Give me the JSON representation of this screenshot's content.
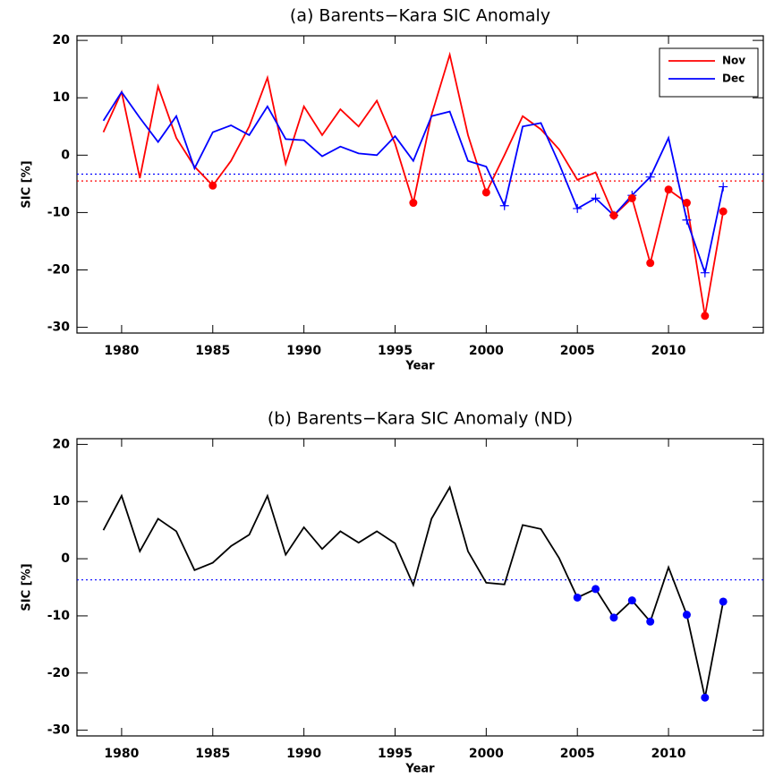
{
  "chart_data": [
    {
      "type": "line",
      "title": "(a) Barents−Kara SIC Anomaly",
      "xlabel": "Year",
      "ylabel": "SIC [%]",
      "xlim": [
        1977.55,
        2015.2
      ],
      "ylim": [
        -31,
        20.8
      ],
      "xticks": [
        1980,
        1985,
        1990,
        1995,
        2000,
        2005,
        2010
      ],
      "yticks": [
        -30,
        -20,
        -10,
        0,
        10,
        20
      ],
      "legend": "upper right",
      "x": [
        1979,
        1980,
        1981,
        1982,
        1983,
        1984,
        1985,
        1986,
        1987,
        1988,
        1989,
        1990,
        1991,
        1992,
        1993,
        1994,
        1995,
        1996,
        1997,
        1998,
        1999,
        2000,
        2001,
        2002,
        2003,
        2004,
        2005,
        2006,
        2007,
        2008,
        2009,
        2010,
        2011,
        2012,
        2013
      ],
      "series": [
        {
          "name": "Nov",
          "color": "#ff0000",
          "values": [
            4,
            11,
            -4,
            12,
            3,
            -2,
            -5.3,
            -1,
            5,
            13.5,
            -1.5,
            8.5,
            3.5,
            8,
            5,
            9.5,
            2,
            -8.3,
            7,
            17.5,
            3.5,
            -6.5,
            0,
            6.8,
            4.5,
            1,
            -4.3,
            -3,
            -10.5,
            -7.5,
            -18.8,
            -6,
            -8.3,
            -28,
            -9.8
          ]
        },
        {
          "name": "Dec",
          "color": "#0000ff",
          "values": [
            6,
            11,
            6.5,
            2.3,
            6.8,
            -2.3,
            4,
            5.2,
            3.5,
            8.5,
            2.8,
            2.6,
            -0.2,
            1.5,
            0.3,
            0,
            3.3,
            -1,
            6.8,
            7.6,
            -1,
            -2,
            -8.8,
            5,
            5.6,
            -1.5,
            -9.3,
            -7.5,
            -10.5,
            -7,
            -3.8,
            3,
            -11.3,
            -20.5,
            -5.5
          ]
        },
        {
          "color": "#0000ff",
          "marker": "plus",
          "values": [
            null,
            null,
            null,
            null,
            null,
            null,
            null,
            null,
            null,
            null,
            null,
            null,
            null,
            null,
            null,
            null,
            null,
            null,
            null,
            null,
            null,
            null,
            -8.8,
            null,
            null,
            null,
            -9.3,
            -7.5,
            -10.5,
            -7,
            -3.8,
            null,
            -11.3,
            -20.5,
            -5.5
          ]
        },
        {
          "color": "#ff0000",
          "marker": "circle",
          "values": [
            null,
            null,
            null,
            null,
            null,
            null,
            -5.3,
            null,
            null,
            null,
            null,
            null,
            null,
            null,
            null,
            null,
            null,
            -8.3,
            null,
            null,
            null,
            -6.5,
            null,
            null,
            null,
            null,
            null,
            null,
            -10.5,
            -7.5,
            -18.8,
            -6,
            -8.3,
            -28,
            -9.8
          ]
        }
      ],
      "hlines": [
        {
          "value": -3.3,
          "color": "#0000ff"
        },
        {
          "value": -4.5,
          "color": "#ff0000"
        }
      ]
    },
    {
      "type": "line",
      "title": "(b) Barents−Kara SIC Anomaly (ND)",
      "xlabel": "Year",
      "ylabel": "SIC [%]",
      "xlim": [
        1977.55,
        2015.2
      ],
      "ylim": [
        -31,
        21
      ],
      "xticks": [
        1980,
        1985,
        1990,
        1995,
        2000,
        2005,
        2010
      ],
      "yticks": [
        -30,
        -20,
        -10,
        0,
        10,
        20
      ],
      "x": [
        1979,
        1980,
        1981,
        1982,
        1983,
        1984,
        1985,
        1986,
        1987,
        1988,
        1989,
        1990,
        1991,
        1992,
        1993,
        1994,
        1995,
        1996,
        1997,
        1998,
        1999,
        2000,
        2001,
        2002,
        2003,
        2004,
        2005,
        2006,
        2007,
        2008,
        2009,
        2010,
        2011,
        2012,
        2013
      ],
      "series": [
        {
          "color": "#000000",
          "values": [
            5,
            11,
            1.3,
            7,
            4.8,
            -2,
            -0.7,
            2.2,
            4.2,
            11,
            0.7,
            5.5,
            1.7,
            4.8,
            2.8,
            4.8,
            2.7,
            -4.6,
            7,
            12.5,
            1.3,
            -4.2,
            -4.5,
            5.9,
            5.2,
            0.1,
            -6.8,
            -5.3,
            -10.3,
            -7.3,
            -11,
            -1.5,
            -9.8,
            -24.3,
            -7.5
          ]
        },
        {
          "color": "#0000ff",
          "marker": "circle",
          "values": [
            null,
            null,
            null,
            null,
            null,
            null,
            null,
            null,
            null,
            null,
            null,
            null,
            null,
            null,
            null,
            null,
            null,
            null,
            null,
            null,
            null,
            null,
            null,
            null,
            null,
            null,
            -6.8,
            -5.3,
            -10.3,
            -7.3,
            -11,
            null,
            -9.8,
            -24.3,
            -7.5
          ]
        }
      ],
      "hlines": [
        {
          "value": -3.7,
          "color": "#0000ff"
        }
      ]
    }
  ]
}
